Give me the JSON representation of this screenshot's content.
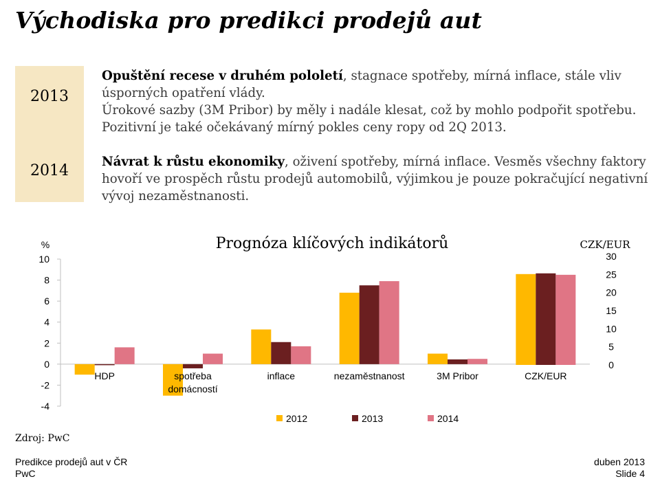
{
  "slide": {
    "title": "Východiska pro predikci prodejů aut",
    "rows": [
      {
        "year": "2013",
        "bold": "Opuštění recese v druhém pololetí",
        "text": ", stagnace spotřeby, mírná inflace, stále vliv úsporných opatření vlády.",
        "extra": "Úrokové sazby (3M Pribor) by měly i nadále klesat, což by mohlo podpořit spotřebu. Pozitivní je také očekávaný mírný pokles ceny ropy od 2Q 2013."
      },
      {
        "year": "2014",
        "bold": "Návrat k růstu ekonomiky",
        "text": ", oživení spotřeby, mírná inflace. Vesměs všechny faktory hovoří ve prospěch růstu prodejů automobilů, výjimkou je pouze pokračující negativní vývoj nezaměstnanosti."
      }
    ],
    "source": "Zdroj: PwC",
    "footer": {
      "left_line1": "Predikce prodejů aut v ČR",
      "left_line2": "PwC",
      "right_line1": "duben 2013",
      "right_line2": "Slide 4"
    }
  },
  "chart_data": {
    "type": "bar",
    "title": "Prognóza klíčových indikátorů",
    "ylabel_left": "%",
    "ylabel_right": "CZK/EUR",
    "left_ylim": [
      -4,
      10
    ],
    "left_ticks": [
      "10",
      "8",
      "6",
      "4",
      "2",
      "0",
      "-2",
      "-4"
    ],
    "right_ylim": [
      0,
      30
    ],
    "right_ticks": [
      "30",
      "25",
      "20",
      "15",
      "10",
      "5",
      "0"
    ],
    "categories": [
      "HDP",
      "spotřeba domácností",
      "inflace",
      "nezaměstnanost",
      "3M Pribor",
      "CZK/EUR"
    ],
    "category_labels": [
      [
        "HDP"
      ],
      [
        "spotřeba",
        "domácností"
      ],
      [
        "inflace"
      ],
      [
        "nezaměstnanost"
      ],
      [
        "3M Pribor"
      ],
      [
        "CZK/EUR"
      ]
    ],
    "category_axis": [
      "left",
      "left",
      "left",
      "left",
      "left",
      "right"
    ],
    "series": [
      {
        "name": "2012",
        "color": "#ffb800",
        "values": [
          -1.0,
          -3.0,
          3.3,
          6.8,
          1.0,
          25.1
        ]
      },
      {
        "name": "2013",
        "color": "#6b1f20",
        "values": [
          -0.1,
          -0.4,
          2.1,
          7.5,
          0.45,
          25.3
        ]
      },
      {
        "name": "2014",
        "color": "#e07585",
        "values": [
          1.6,
          1.0,
          1.7,
          7.9,
          0.5,
          24.9
        ]
      }
    ],
    "legend_position": "bottom",
    "grid": false
  }
}
